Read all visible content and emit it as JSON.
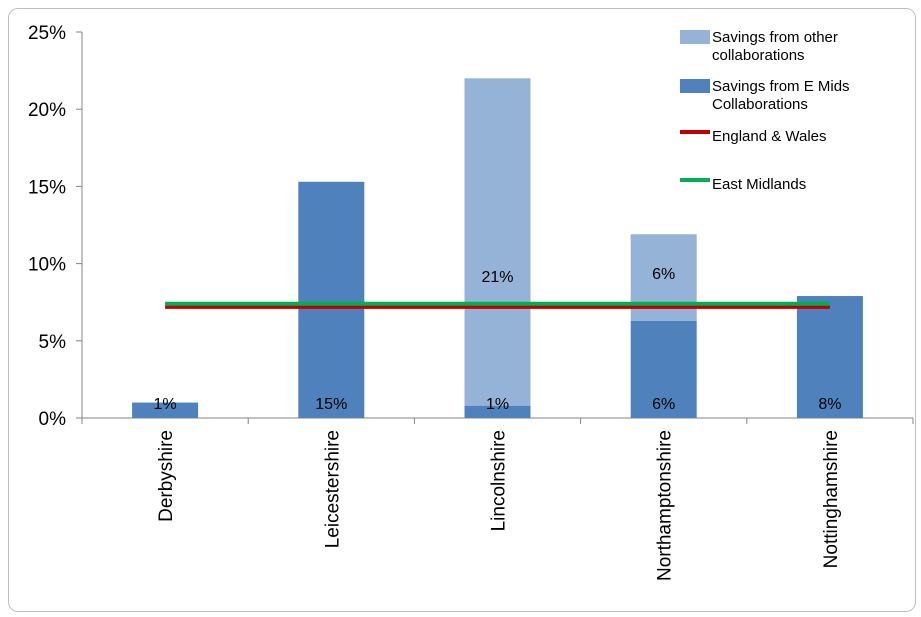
{
  "chart_data": {
    "type": "bar",
    "stacked": true,
    "categories": [
      "Derbyshire",
      "Leicestershire",
      "Lincolnshire",
      "Northamptonshire",
      "Nottinghamshire"
    ],
    "series": [
      {
        "name": "Savings from E Mids Collaborations",
        "values": [
          1.0,
          15.3,
          0.8,
          6.3,
          7.9
        ],
        "labels": [
          "1%",
          "15%",
          "1%",
          "6%",
          "8%"
        ],
        "color": "#4f81bd"
      },
      {
        "name": "Savings from other collaborations",
        "values": [
          0,
          0,
          21.2,
          5.6,
          0
        ],
        "labels": [
          "",
          "",
          "21%",
          "6%",
          ""
        ],
        "color": "#95b3d7"
      }
    ],
    "lines": [
      {
        "name": "England & Wales",
        "value": 7.2,
        "color": "#c00000"
      },
      {
        "name": "East Midlands",
        "value": 7.4,
        "color": "#00b050"
      }
    ],
    "legend": [
      {
        "label": "Savings from other collaborations",
        "lines": [
          "Savings from other",
          "collaborations"
        ],
        "kind": "bar",
        "color": "#95b3d7"
      },
      {
        "label": "Savings from E Mids Collaborations",
        "lines": [
          "Savings from E Mids",
          "Collaborations"
        ],
        "kind": "bar",
        "color": "#4f81bd"
      },
      {
        "label": "England & Wales",
        "lines": [
          "England & Wales"
        ],
        "kind": "line",
        "color": "#c00000"
      },
      {
        "label": "East Midlands",
        "lines": [
          "East Midlands"
        ],
        "kind": "line",
        "color": "#00b050"
      }
    ],
    "yticks": [
      "0%",
      "5%",
      "10%",
      "15%",
      "20%",
      "25%"
    ],
    "ylim": [
      0,
      25
    ],
    "legend_position": "top-right",
    "grid": false
  }
}
